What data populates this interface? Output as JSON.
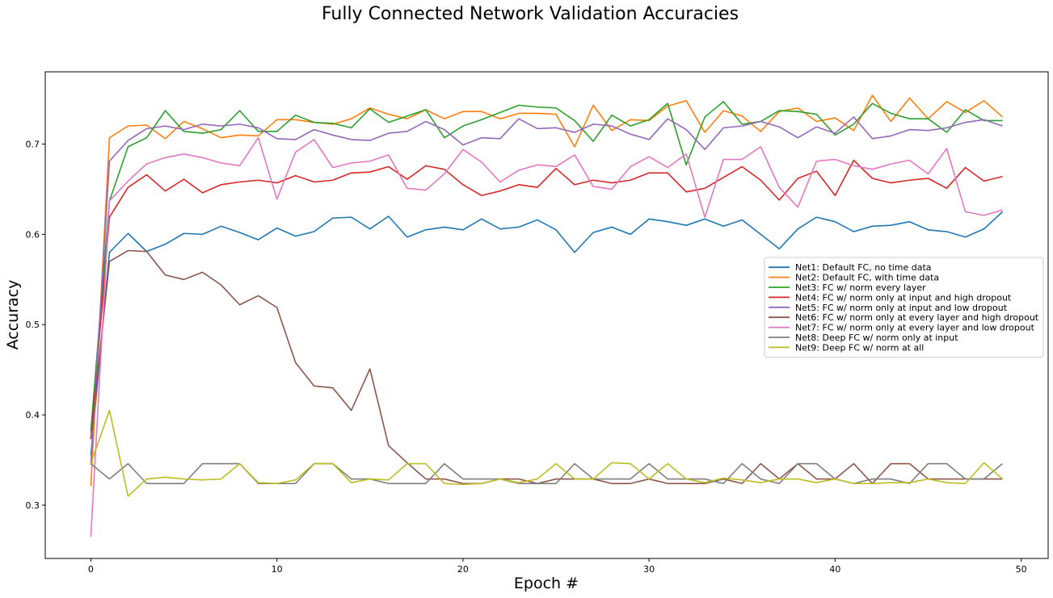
{
  "chart_data": {
    "type": "line",
    "title": "Fully Connected Network Validation Accuracies",
    "xlabel": "Epoch #",
    "ylabel": "Accuracy",
    "xlim": [
      -2.45,
      51.45
    ],
    "ylim": [
      0.241,
      0.78
    ],
    "xticks": [
      0,
      10,
      20,
      30,
      40,
      50
    ],
    "yticks": [
      0.3,
      0.4,
      0.5,
      0.6,
      0.7
    ],
    "ytick_labels": [
      "0.3",
      "0.4",
      "0.5",
      "0.6",
      "0.7"
    ],
    "grid": false,
    "legend_position": "center-right",
    "x": [
      0,
      1,
      2,
      3,
      4,
      5,
      6,
      7,
      8,
      9,
      10,
      11,
      12,
      13,
      14,
      15,
      16,
      17,
      18,
      19,
      20,
      21,
      22,
      23,
      24,
      25,
      26,
      27,
      28,
      29,
      30,
      31,
      32,
      33,
      34,
      35,
      36,
      37,
      38,
      39,
      40,
      41,
      42,
      43,
      44,
      45,
      46,
      47,
      48,
      49
    ],
    "series": [
      {
        "name": "Net1: Default FC, no time data",
        "color": "#1f77b4",
        "values": [
          0.355,
          0.58,
          0.601,
          0.581,
          0.589,
          0.601,
          0.6,
          0.609,
          0.602,
          0.594,
          0.607,
          0.598,
          0.603,
          0.618,
          0.619,
          0.606,
          0.62,
          0.597,
          0.605,
          0.608,
          0.605,
          0.617,
          0.606,
          0.608,
          0.616,
          0.605,
          0.58,
          0.602,
          0.608,
          0.6,
          0.617,
          0.614,
          0.61,
          0.617,
          0.609,
          0.616,
          0.6,
          0.584,
          0.606,
          0.619,
          0.614,
          0.603,
          0.609,
          0.61,
          0.614,
          0.605,
          0.603,
          0.597,
          0.606,
          0.625
        ]
      },
      {
        "name": "Net2: Default FC, with time data",
        "color": "#ff7f0e",
        "values": [
          0.321,
          0.707,
          0.72,
          0.721,
          0.706,
          0.725,
          0.717,
          0.707,
          0.71,
          0.709,
          0.727,
          0.727,
          0.724,
          0.722,
          0.728,
          0.74,
          0.733,
          0.728,
          0.738,
          0.728,
          0.736,
          0.736,
          0.728,
          0.734,
          0.734,
          0.733,
          0.697,
          0.743,
          0.715,
          0.727,
          0.726,
          0.742,
          0.748,
          0.713,
          0.737,
          0.731,
          0.714,
          0.736,
          0.74,
          0.725,
          0.729,
          0.715,
          0.754,
          0.725,
          0.751,
          0.728,
          0.747,
          0.735,
          0.748,
          0.73
        ]
      },
      {
        "name": "Net3: FC w/ norm every layer",
        "color": "#2ca02c",
        "values": [
          0.382,
          0.637,
          0.697,
          0.707,
          0.737,
          0.714,
          0.712,
          0.716,
          0.737,
          0.714,
          0.714,
          0.732,
          0.724,
          0.723,
          0.718,
          0.739,
          0.724,
          0.731,
          0.738,
          0.707,
          0.72,
          0.727,
          0.735,
          0.743,
          0.741,
          0.74,
          0.726,
          0.703,
          0.732,
          0.72,
          0.727,
          0.745,
          0.677,
          0.73,
          0.747,
          0.722,
          0.725,
          0.737,
          0.736,
          0.733,
          0.71,
          0.722,
          0.745,
          0.734,
          0.728,
          0.728,
          0.713,
          0.738,
          0.726,
          0.726
        ]
      },
      {
        "name": "Net4: FC w/ norm only at input and high dropout",
        "color": "#d62728",
        "values": [
          0.373,
          0.619,
          0.652,
          0.666,
          0.648,
          0.661,
          0.646,
          0.655,
          0.658,
          0.66,
          0.657,
          0.665,
          0.658,
          0.66,
          0.668,
          0.669,
          0.675,
          0.661,
          0.676,
          0.672,
          0.655,
          0.643,
          0.648,
          0.655,
          0.652,
          0.673,
          0.655,
          0.66,
          0.657,
          0.66,
          0.668,
          0.668,
          0.647,
          0.651,
          0.663,
          0.675,
          0.66,
          0.638,
          0.662,
          0.67,
          0.643,
          0.682,
          0.662,
          0.657,
          0.66,
          0.662,
          0.651,
          0.674,
          0.659,
          0.664
        ]
      },
      {
        "name": "Net5: FC w/ norm only at input and low dropout",
        "color": "#9467bd",
        "values": [
          0.345,
          0.681,
          0.704,
          0.717,
          0.72,
          0.716,
          0.722,
          0.72,
          0.722,
          0.718,
          0.706,
          0.705,
          0.716,
          0.71,
          0.705,
          0.704,
          0.712,
          0.714,
          0.725,
          0.716,
          0.699,
          0.707,
          0.706,
          0.728,
          0.717,
          0.718,
          0.713,
          0.722,
          0.72,
          0.711,
          0.705,
          0.728,
          0.716,
          0.694,
          0.718,
          0.72,
          0.725,
          0.719,
          0.707,
          0.719,
          0.712,
          0.73,
          0.706,
          0.709,
          0.716,
          0.715,
          0.718,
          0.724,
          0.727,
          0.72
        ]
      },
      {
        "name": "Net6: FC w/ norm only at every layer and high dropout",
        "color": "#8c564b",
        "values": [
          0.374,
          0.57,
          0.582,
          0.581,
          0.555,
          0.55,
          0.558,
          0.544,
          0.522,
          0.532,
          0.519,
          0.458,
          0.432,
          0.43,
          0.405,
          0.451,
          0.366,
          0.347,
          0.329,
          0.329,
          0.324,
          0.324,
          0.329,
          0.329,
          0.324,
          0.329,
          0.329,
          0.329,
          0.324,
          0.324,
          0.329,
          0.324,
          0.324,
          0.324,
          0.329,
          0.324,
          0.346,
          0.329,
          0.346,
          0.329,
          0.329,
          0.346,
          0.324,
          0.346,
          0.346,
          0.329,
          0.329,
          0.329,
          0.329,
          0.329
        ]
      },
      {
        "name": "Net7: FC w/ norm only at every layer and low dropout",
        "color": "#e377c2",
        "values": [
          0.265,
          0.637,
          0.659,
          0.678,
          0.685,
          0.689,
          0.685,
          0.679,
          0.676,
          0.707,
          0.639,
          0.691,
          0.705,
          0.674,
          0.679,
          0.681,
          0.688,
          0.651,
          0.649,
          0.667,
          0.694,
          0.68,
          0.658,
          0.671,
          0.677,
          0.675,
          0.688,
          0.653,
          0.65,
          0.675,
          0.686,
          0.674,
          0.689,
          0.619,
          0.683,
          0.683,
          0.697,
          0.652,
          0.63,
          0.681,
          0.683,
          0.676,
          0.672,
          0.678,
          0.682,
          0.667,
          0.695,
          0.625,
          0.621,
          0.627
        ]
      },
      {
        "name": "Net8: Deep FC w/ norm only at input",
        "color": "#7f7f7f",
        "values": [
          0.346,
          0.329,
          0.346,
          0.324,
          0.324,
          0.324,
          0.346,
          0.346,
          0.346,
          0.324,
          0.324,
          0.324,
          0.346,
          0.346,
          0.329,
          0.329,
          0.324,
          0.324,
          0.324,
          0.346,
          0.329,
          0.329,
          0.329,
          0.324,
          0.324,
          0.324,
          0.346,
          0.329,
          0.329,
          0.329,
          0.346,
          0.329,
          0.329,
          0.329,
          0.324,
          0.346,
          0.329,
          0.324,
          0.346,
          0.346,
          0.329,
          0.324,
          0.329,
          0.329,
          0.324,
          0.346,
          0.346,
          0.329,
          0.329,
          0.346
        ]
      },
      {
        "name": "Net9: Deep FC w/ norm at all",
        "color": "#bcbd22",
        "values": [
          0.346,
          0.405,
          0.31,
          0.329,
          0.331,
          0.329,
          0.328,
          0.329,
          0.346,
          0.325,
          0.324,
          0.328,
          0.346,
          0.346,
          0.325,
          0.329,
          0.328,
          0.346,
          0.346,
          0.324,
          0.323,
          0.324,
          0.329,
          0.325,
          0.329,
          0.346,
          0.329,
          0.329,
          0.347,
          0.346,
          0.329,
          0.346,
          0.329,
          0.325,
          0.33,
          0.328,
          0.325,
          0.329,
          0.329,
          0.325,
          0.329,
          0.324,
          0.324,
          0.325,
          0.325,
          0.329,
          0.325,
          0.324,
          0.347,
          0.329
        ]
      }
    ]
  }
}
